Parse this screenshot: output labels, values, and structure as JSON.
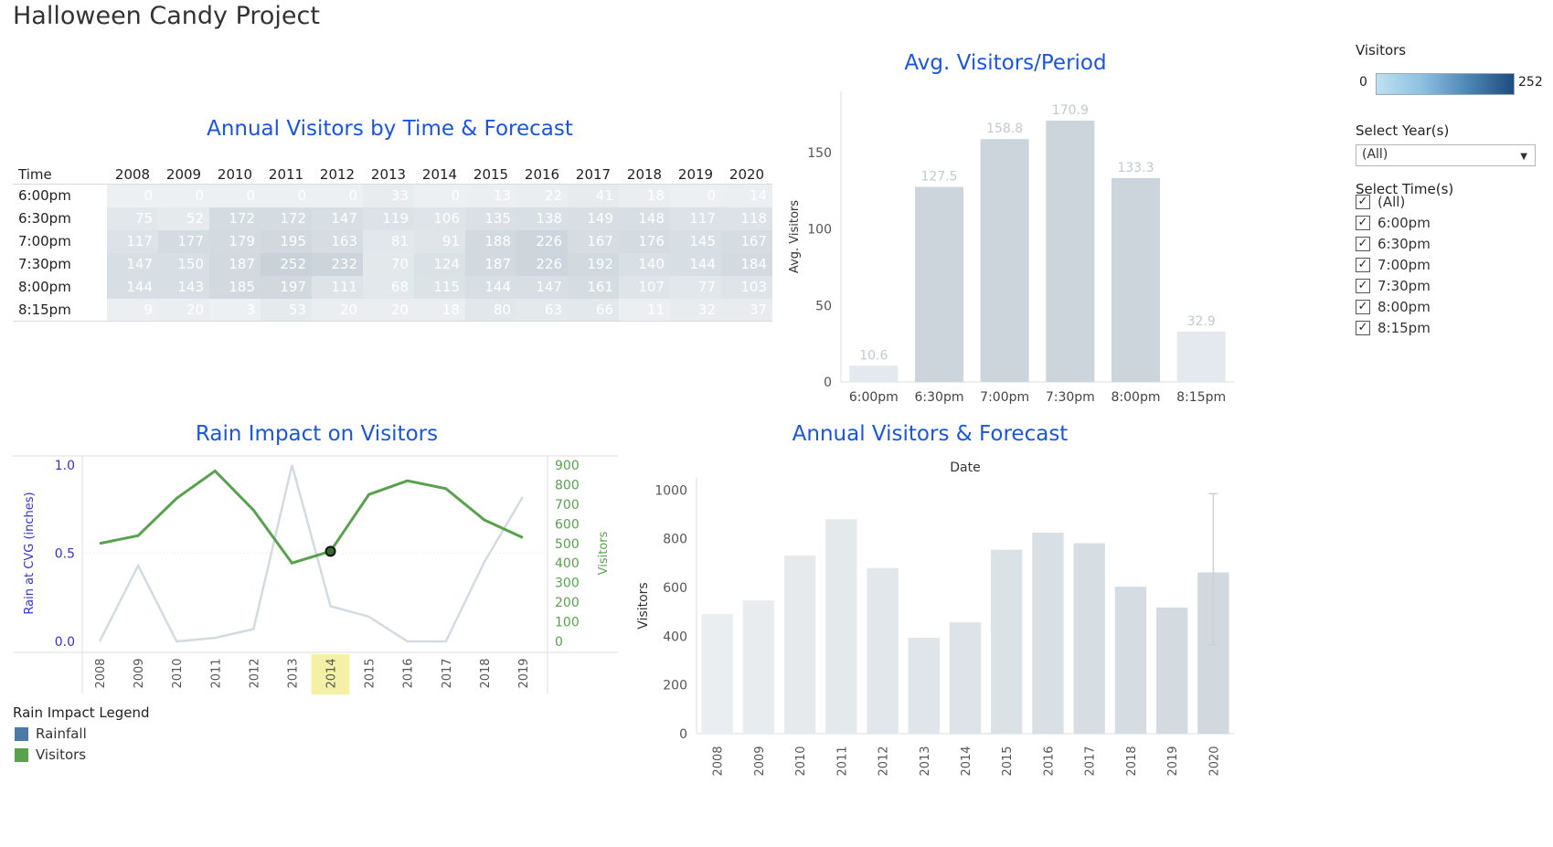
{
  "page": {
    "title": "Halloween Candy Project"
  },
  "heat_table": {
    "title": "Annual Visitors by Time & Forecast",
    "time_header": "Time",
    "years": [
      "2008",
      "2009",
      "2010",
      "2011",
      "2012",
      "2013",
      "2014",
      "2015",
      "2016",
      "2017",
      "2018",
      "2019",
      "2020"
    ],
    "rows": [
      {
        "time": "6:00pm",
        "values": [
          0,
          0,
          0,
          0,
          0,
          33,
          0,
          13,
          22,
          41,
          18,
          0,
          14
        ]
      },
      {
        "time": "6:30pm",
        "values": [
          75,
          52,
          172,
          172,
          147,
          119,
          106,
          135,
          138,
          149,
          148,
          117,
          118
        ]
      },
      {
        "time": "7:00pm",
        "values": [
          117,
          177,
          179,
          195,
          163,
          81,
          91,
          188,
          226,
          167,
          176,
          145,
          167
        ]
      },
      {
        "time": "7:30pm",
        "values": [
          147,
          150,
          187,
          252,
          232,
          70,
          124,
          187,
          226,
          192,
          140,
          144,
          184
        ]
      },
      {
        "time": "8:00pm",
        "values": [
          144,
          143,
          185,
          197,
          111,
          68,
          115,
          144,
          147,
          161,
          107,
          77,
          103
        ]
      },
      {
        "time": "8:15pm",
        "values": [
          9,
          20,
          3,
          53,
          20,
          20,
          18,
          80,
          63,
          66,
          11,
          32,
          37
        ]
      }
    ]
  },
  "chart_data": [
    {
      "type": "bar",
      "title": "Avg. Visitors/Period",
      "ylabel": "Avg. Visitors",
      "categories": [
        "6:00pm",
        "6:30pm",
        "7:00pm",
        "7:30pm",
        "8:00pm",
        "8:15pm"
      ],
      "values": [
        10.6,
        127.5,
        158.8,
        170.9,
        133.3,
        32.9
      ],
      "value_labels": [
        "10.6",
        "127.5",
        "158.8",
        "170.9",
        "133.3",
        "32.9"
      ],
      "ylim": [
        0,
        190
      ],
      "yticks": [
        0,
        50,
        100,
        150
      ]
    },
    {
      "type": "line",
      "title": "Rain Impact on Visitors",
      "x": [
        "2008",
        "2009",
        "2010",
        "2011",
        "2012",
        "2013",
        "2014",
        "2015",
        "2016",
        "2017",
        "2018",
        "2019"
      ],
      "highlight_x": "2014",
      "series": [
        {
          "name": "Rainfall",
          "axis": "left",
          "values": [
            0.0,
            0.43,
            0.0,
            0.02,
            0.07,
            1.0,
            0.2,
            0.14,
            0.0,
            0.0,
            0.45,
            0.82
          ]
        },
        {
          "name": "Visitors",
          "axis": "right",
          "values": [
            500,
            540,
            730,
            870,
            670,
            400,
            460,
            750,
            820,
            780,
            620,
            530
          ]
        }
      ],
      "left_axis": {
        "label": "Rain at CVG (inches)",
        "ticks": [
          0.0,
          0.5,
          1.0
        ],
        "tick_labels": [
          "0.0",
          "0.5",
          "1.0"
        ],
        "range": [
          0,
          1.0
        ]
      },
      "right_axis": {
        "label": "Visitors",
        "ticks": [
          0,
          100,
          200,
          300,
          400,
          500,
          600,
          700,
          800,
          900
        ],
        "range": [
          0,
          900
        ]
      },
      "legend": {
        "title": "Rain Impact Legend",
        "items": [
          {
            "name": "Rainfall",
            "color": "#4e79a7"
          },
          {
            "name": "Visitors",
            "color": "#59a14f"
          }
        ]
      }
    },
    {
      "type": "bar",
      "title": "Annual Visitors & Forecast",
      "header": "Date",
      "ylabel": "Visitors",
      "categories": [
        "2008",
        "2009",
        "2010",
        "2011",
        "2012",
        "2013",
        "2014",
        "2015",
        "2016",
        "2017",
        "2018",
        "2019",
        "2020"
      ],
      "values": [
        492,
        547,
        732,
        880,
        680,
        394,
        457,
        755,
        825,
        782,
        603,
        518,
        662
      ],
      "forecast_range_2020": [
        365,
        985
      ],
      "ylim": [
        0,
        1050
      ],
      "yticks": [
        0,
        200,
        400,
        600,
        800,
        1000
      ]
    }
  ],
  "filters": {
    "visitors_legend": {
      "title": "Visitors",
      "min": "0",
      "max": "252"
    },
    "select_year": {
      "label": "Select Year(s)",
      "value": "(All)"
    },
    "select_time": {
      "label": "Select Time(s)",
      "options": [
        {
          "label": "(All)",
          "checked": true
        },
        {
          "label": "6:00pm",
          "checked": true
        },
        {
          "label": "6:30pm",
          "checked": true
        },
        {
          "label": "7:00pm",
          "checked": true
        },
        {
          "label": "7:30pm",
          "checked": true
        },
        {
          "label": "8:00pm",
          "checked": true
        },
        {
          "label": "8:15pm",
          "checked": true
        }
      ]
    }
  },
  "colors": {
    "title_blue": "#1a56db",
    "bar_light": "#e1e8ee",
    "bar_mid": "#cfd8df",
    "rain_line": "#d3dae0",
    "visitor_line": "#59a14f",
    "left_axis_text": "#3333cc",
    "right_axis_text": "#59a14f"
  }
}
